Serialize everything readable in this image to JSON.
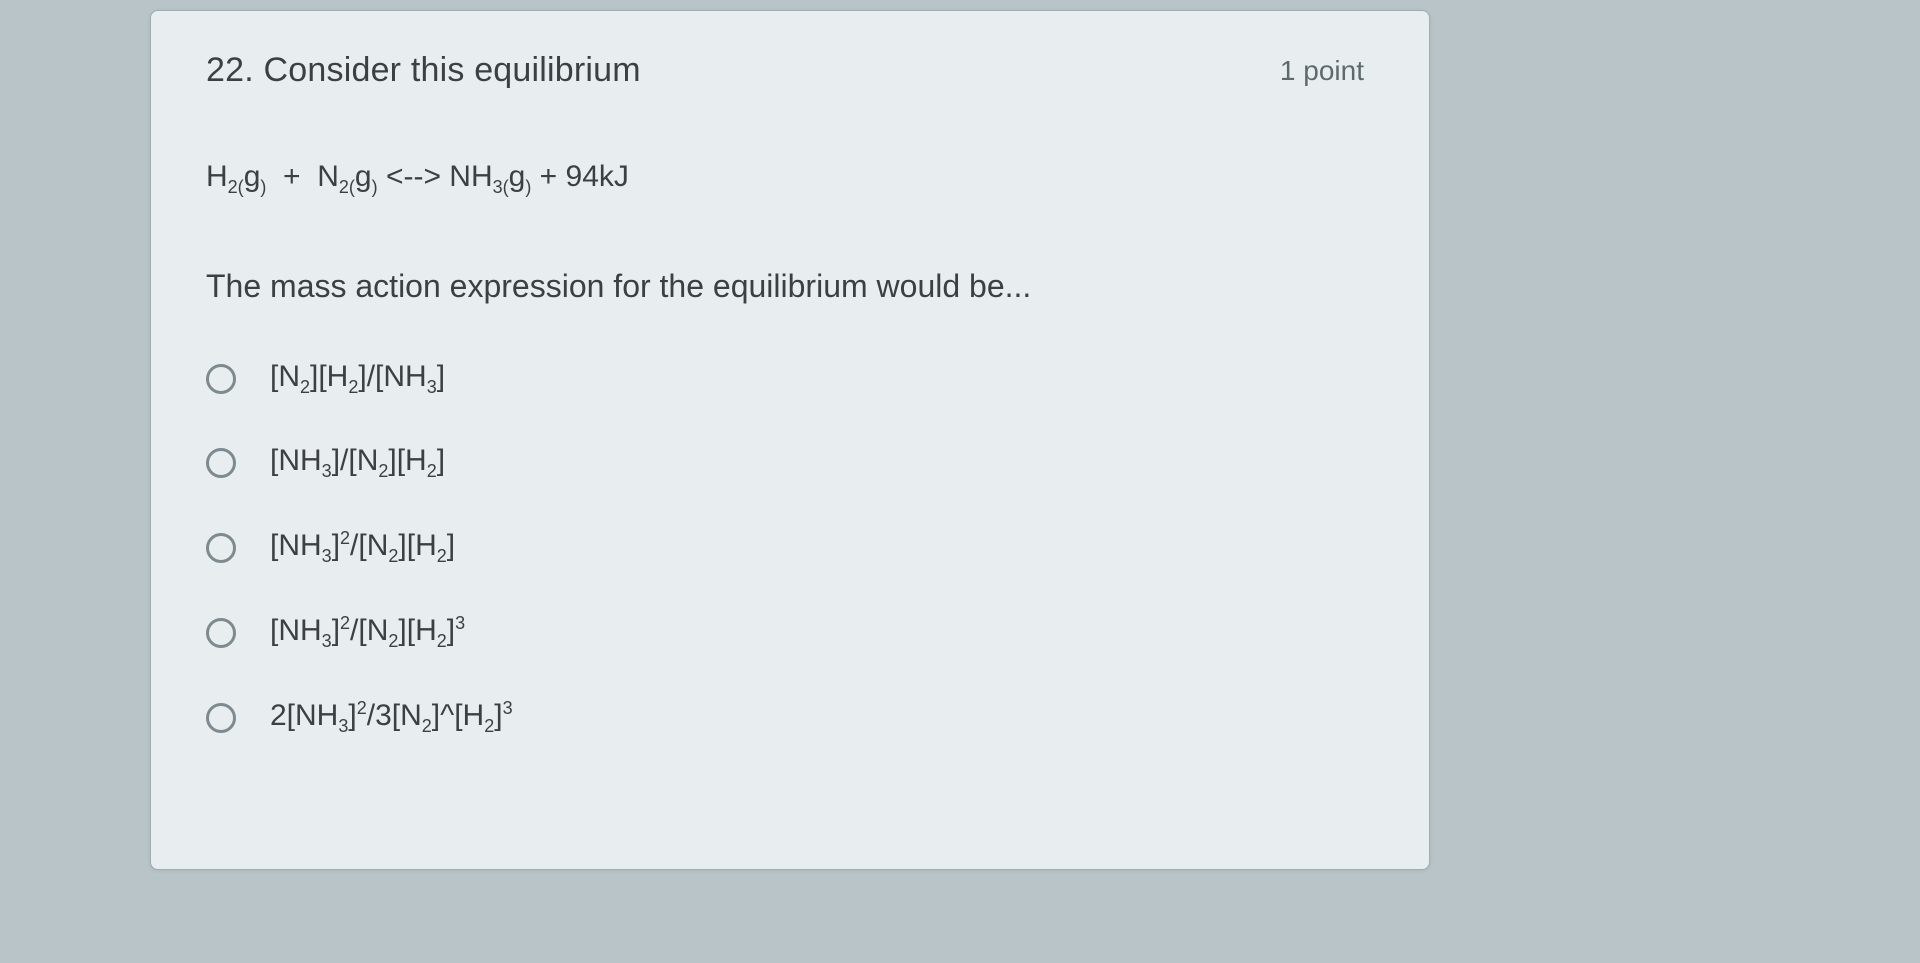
{
  "card": {
    "background_color": "#e8eef0",
    "border_color": "#9faeb3",
    "text_color": "#3c4043",
    "secondary_text_color": "#5f6a6e"
  },
  "question": {
    "number": "22.",
    "title": "Consider this equilibrium",
    "points": "1 point",
    "equation_html": "H<sub>2(</sub>g<sub>)</sub>&nbsp;&nbsp;+&nbsp;&nbsp;N<sub>2(</sub>g<sub>)</sub>&nbsp;&lt;--&gt;&nbsp;NH<sub>3(</sub>g<sub>)</sub>&nbsp;+&nbsp;94kJ",
    "prompt": "The mass action expression for the equilibrium would be..."
  },
  "options": [
    {
      "html": "[N<sub>2</sub>][H<sub>2</sub>]/[NH<sub>3</sub>]"
    },
    {
      "html": "[NH<sub>3</sub>]/[N<sub>2</sub>][H<sub>2</sub>]"
    },
    {
      "html": "[NH<sub>3</sub>]<sup>2</sup>/[N<sub>2</sub>][H<sub>2</sub>]"
    },
    {
      "html": "[NH<sub>3</sub>]<sup>2</sup>/[N<sub>2</sub>][H<sub>2</sub>]<sup>3</sup>"
    },
    {
      "html": "2[NH<sub>3</sub>]<sup>2</sup>/3[N<sub>2</sub>]^[H<sub>2</sub>]<sup>3</sup>"
    }
  ]
}
